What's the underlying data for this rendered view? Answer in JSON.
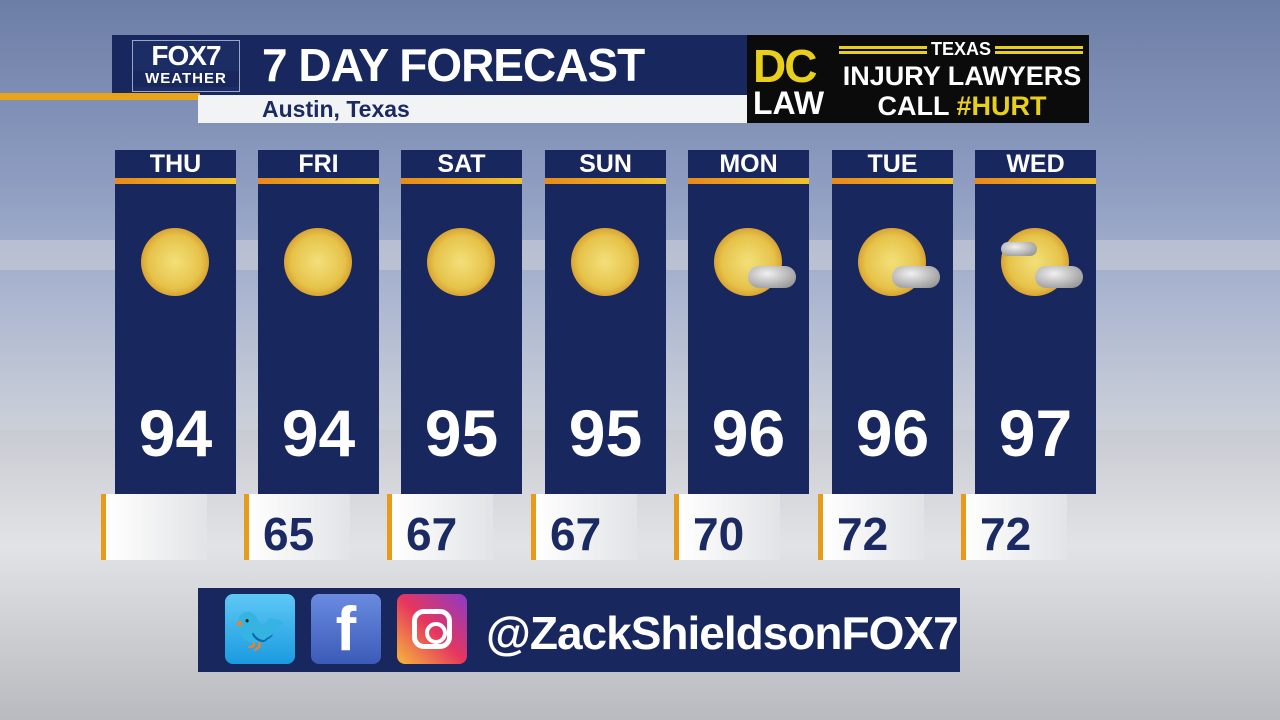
{
  "header": {
    "logo_line1": "FOX7",
    "logo_line2": "WEATHER",
    "title": "7 DAY FORECAST",
    "location": "Austin, Texas"
  },
  "ad": {
    "brand_top": "DC",
    "brand_bottom": "LAW",
    "state": "TEXAS",
    "line1": "INJURY LAWYERS",
    "call": "CALL",
    "hashtag": "#HURT"
  },
  "days": [
    {
      "day": "THU",
      "high": "94",
      "low": "",
      "icon": "sunny"
    },
    {
      "day": "FRI",
      "high": "94",
      "low": "65",
      "icon": "sunny"
    },
    {
      "day": "SAT",
      "high": "95",
      "low": "67",
      "icon": "sunny"
    },
    {
      "day": "SUN",
      "high": "95",
      "low": "67",
      "icon": "sunny"
    },
    {
      "day": "MON",
      "high": "96",
      "low": "70",
      "icon": "mostly-sunny"
    },
    {
      "day": "TUE",
      "high": "96",
      "low": "72",
      "icon": "mostly-sunny"
    },
    {
      "day": "WED",
      "high": "97",
      "low": "72",
      "icon": "partly-sunny"
    }
  ],
  "social": {
    "icons": [
      "twitter-icon",
      "facebook-icon",
      "instagram-icon"
    ],
    "handle": "@ZackShieldsonFOX7"
  },
  "colors": {
    "navy": "#18285e",
    "orange": "#e8a319",
    "ad_yellow": "#e8cf1c"
  }
}
